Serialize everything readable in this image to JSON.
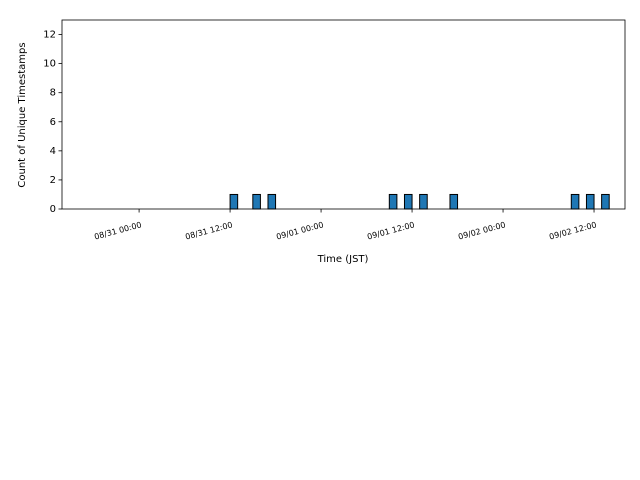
{
  "chart_data": {
    "type": "bar",
    "x": [
      "08/31 12:00",
      "08/31 15:00",
      "08/31 17:00",
      "09/01 09:00",
      "09/01 11:00",
      "09/01 13:00",
      "09/01 17:00",
      "09/02 09:00",
      "09/02 11:00",
      "09/02 13:00"
    ],
    "values": [
      1,
      1,
      1,
      1,
      1,
      1,
      1,
      1,
      1,
      1
    ],
    "color": "#1f77b4",
    "xlabel": "Time (JST)",
    "ylabel": "Count of Unique Timestamps",
    "xlim": [
      "08/30 13:50",
      "09/02 16:05"
    ],
    "xticks": [
      "08/31 00:00",
      "08/31 12:00",
      "09/01 00:00",
      "09/01 12:00",
      "09/02 00:00",
      "09/02 12:00"
    ],
    "ylim": [
      0,
      13
    ],
    "yticks": [
      0,
      2,
      4,
      6,
      8,
      10,
      12
    ]
  }
}
